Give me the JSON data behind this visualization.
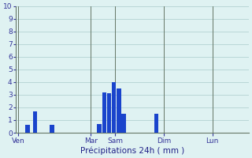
{
  "xlabel": "Précipitations 24h ( mm )",
  "ylim": [
    0,
    10
  ],
  "yticks": [
    0,
    1,
    2,
    3,
    4,
    5,
    6,
    7,
    8,
    9,
    10
  ],
  "bar_color": "#1a44cc",
  "background_color": "#dff2f2",
  "grid_color": "#aacccc",
  "day_line_color": "#667766",
  "x_day_labels": [
    "Ven",
    "Mar",
    "Sam",
    "Dim",
    "Lun"
  ],
  "x_day_positions": [
    0,
    3,
    4,
    6,
    8
  ],
  "xlim": [
    -0.1,
    9.5
  ],
  "bar_centers": [
    0.4,
    0.7,
    1.4,
    1.8,
    3.35,
    3.55,
    3.75,
    3.95,
    4.15,
    4.35,
    5.7
  ],
  "bar_heights": [
    0.6,
    1.7,
    0.6,
    0.0,
    0.7,
    3.2,
    3.1,
    4.0,
    3.5,
    1.5,
    1.5
  ],
  "bar_width": 0.18,
  "tick_label_color": "#333399",
  "xlabel_color": "#222288",
  "xlabel_fontsize": 7.5,
  "ytick_fontsize": 6.5,
  "xtick_fontsize": 6.5
}
